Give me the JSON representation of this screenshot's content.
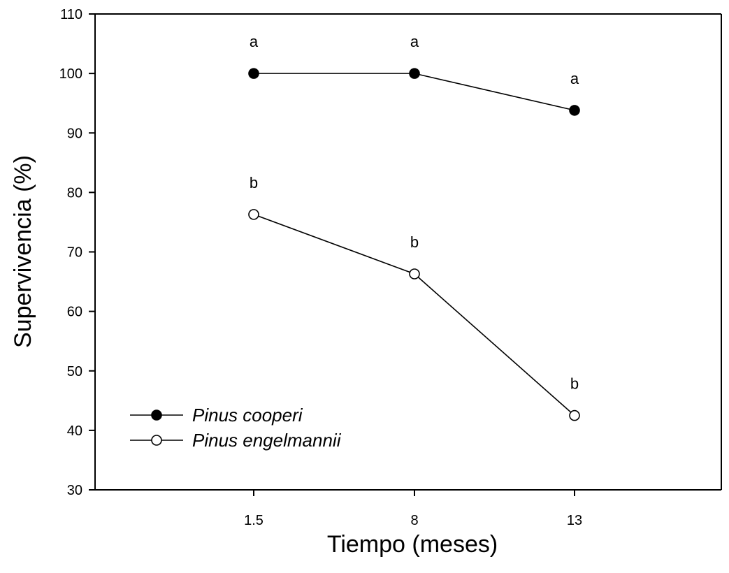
{
  "chart_data": {
    "type": "line",
    "title": "",
    "xlabel": "Tiempo (meses)",
    "ylabel": "Supervivencia (%)",
    "categories": [
      "1.5",
      "8",
      "13"
    ],
    "ylim": [
      30,
      110
    ],
    "yticks": [
      30,
      40,
      50,
      60,
      70,
      80,
      90,
      100,
      110
    ],
    "grid": false,
    "legend_position": "bottom-left",
    "series": [
      {
        "name": "Pinus cooperi",
        "marker": "filled-circle",
        "values": [
          100,
          100,
          93.8
        ],
        "labels": [
          "a",
          "a",
          "a"
        ]
      },
      {
        "name": "Pinus engelmannii",
        "marker": "open-circle",
        "values": [
          76.3,
          66.3,
          42.5
        ],
        "labels": [
          "b",
          "b",
          "b"
        ]
      }
    ]
  }
}
